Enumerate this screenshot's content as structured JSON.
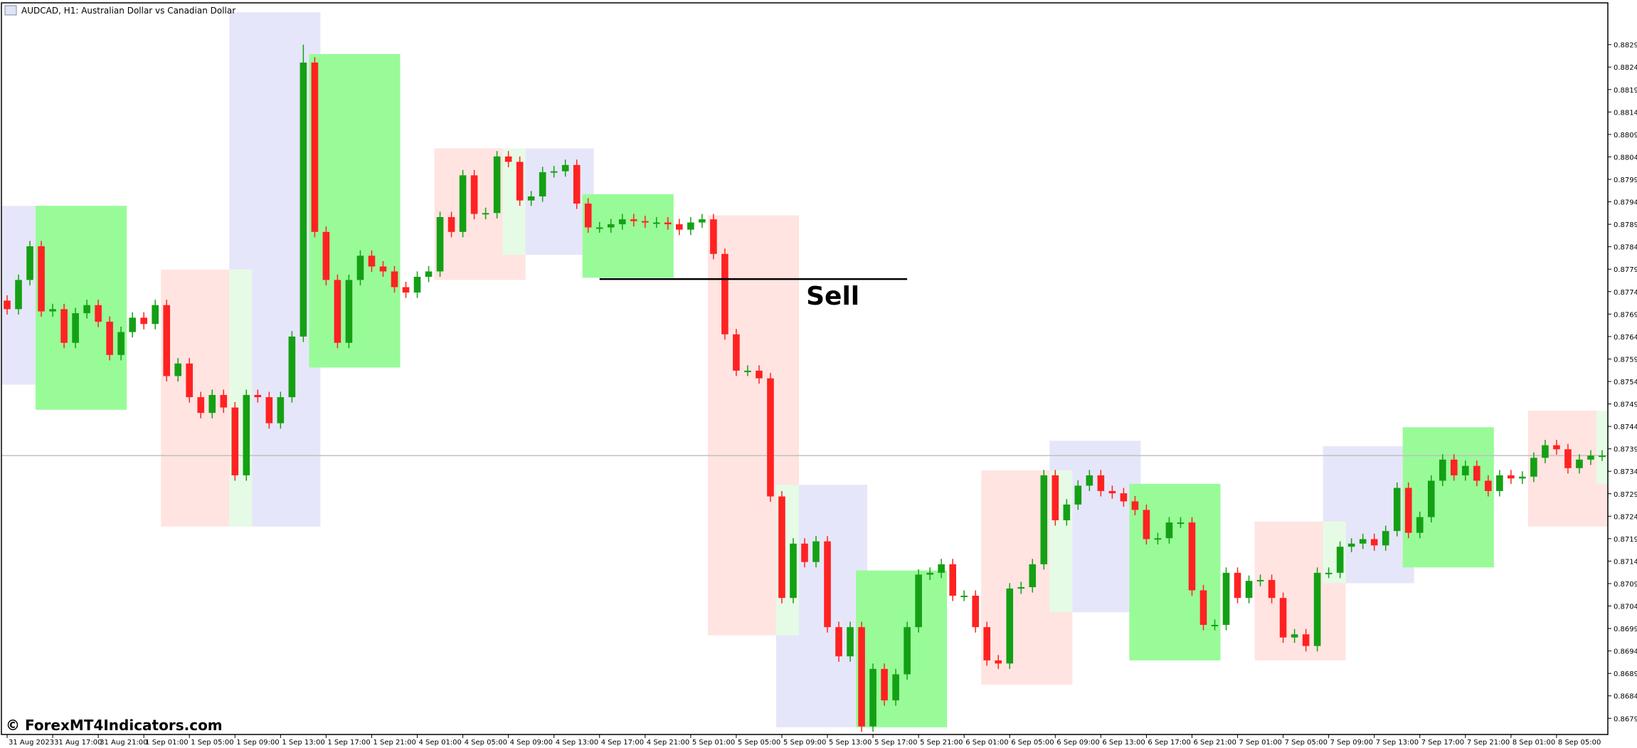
{
  "chart_data": {
    "type": "candlestick",
    "title": "AUDCAD, H1:  Australian Dollar vs Canadian Dollar",
    "watermark": "© ForexMT4Indicators.com",
    "up_color": "#14a014",
    "down_color": "#ff2222",
    "ylim": [
      0.86754,
      0.88383
    ],
    "xlim": [
      -0.5,
      140.5
    ],
    "yticks": [
      {
        "value": 0.8679,
        "label": "0.86790"
      },
      {
        "value": 0.8684,
        "label": "0.86840"
      },
      {
        "value": 0.8689,
        "label": "0.86890"
      },
      {
        "value": 0.8694,
        "label": "0.86940"
      },
      {
        "value": 0.8699,
        "label": "0.86990"
      },
      {
        "value": 0.8704,
        "label": "0.87040"
      },
      {
        "value": 0.8709,
        "label": "0.87090"
      },
      {
        "value": 0.8714,
        "label": "0.87140"
      },
      {
        "value": 0.8719,
        "label": "0.87190"
      },
      {
        "value": 0.8724,
        "label": "0.87240"
      },
      {
        "value": 0.8729,
        "label": "0.87290"
      },
      {
        "value": 0.8734,
        "label": "0.87340"
      },
      {
        "value": 0.8739,
        "label": "0.87390"
      },
      {
        "value": 0.8744,
        "label": "0.87440"
      },
      {
        "value": 0.8749,
        "label": "0.87490"
      },
      {
        "value": 0.8754,
        "label": "0.87540"
      },
      {
        "value": 0.8759,
        "label": "0.87590"
      },
      {
        "value": 0.8764,
        "label": "0.87640"
      },
      {
        "value": 0.8769,
        "label": "0.87690"
      },
      {
        "value": 0.8774,
        "label": "0.87740"
      },
      {
        "value": 0.8779,
        "label": "0.87790"
      },
      {
        "value": 0.8784,
        "label": "0.87840"
      },
      {
        "value": 0.8789,
        "label": "0.87890"
      },
      {
        "value": 0.8794,
        "label": "0.87940"
      },
      {
        "value": 0.8799,
        "label": "0.87990"
      },
      {
        "value": 0.8804,
        "label": "0.88040"
      },
      {
        "value": 0.8809,
        "label": "0.88090"
      },
      {
        "value": 0.8814,
        "label": "0.88140"
      },
      {
        "value": 0.8819,
        "label": "0.88190"
      },
      {
        "value": 0.8824,
        "label": "0.88240"
      },
      {
        "value": 0.8829,
        "label": "0.88290"
      }
    ],
    "xticks": [
      {
        "value": 0,
        "label": "31 Aug 2023"
      },
      {
        "value": 4,
        "label": "31 Aug 17:00"
      },
      {
        "value": 8,
        "label": "31 Aug 21:00"
      },
      {
        "value": 12,
        "label": "1 Sep 01:00"
      },
      {
        "value": 16,
        "label": "1 Sep 05:00"
      },
      {
        "value": 20,
        "label": "1 Sep 09:00"
      },
      {
        "value": 24,
        "label": "1 Sep 13:00"
      },
      {
        "value": 28,
        "label": "1 Sep 17:00"
      },
      {
        "value": 32,
        "label": "1 Sep 21:00"
      },
      {
        "value": 36,
        "label": "4 Sep 01:00"
      },
      {
        "value": 40,
        "label": "4 Sep 05:00"
      },
      {
        "value": 44,
        "label": "4 Sep 09:00"
      },
      {
        "value": 48,
        "label": "4 Sep 13:00"
      },
      {
        "value": 52,
        "label": "4 Sep 17:00"
      },
      {
        "value": 56,
        "label": "4 Sep 21:00"
      },
      {
        "value": 60,
        "label": "5 Sep 01:00"
      },
      {
        "value": 64,
        "label": "5 Sep 05:00"
      },
      {
        "value": 68,
        "label": "5 Sep 09:00"
      },
      {
        "value": 72,
        "label": "5 Sep 13:00"
      },
      {
        "value": 76,
        "label": "5 Sep 17:00"
      },
      {
        "value": 80,
        "label": "5 Sep 21:00"
      },
      {
        "value": 84,
        "label": "6 Sep 01:00"
      },
      {
        "value": 88,
        "label": "6 Sep 05:00"
      },
      {
        "value": 92,
        "label": "6 Sep 09:00"
      },
      {
        "value": 96,
        "label": "6 Sep 13:00"
      },
      {
        "value": 100,
        "label": "6 Sep 17:00"
      },
      {
        "value": 104,
        "label": "6 Sep 21:00"
      },
      {
        "value": 108,
        "label": "7 Sep 01:00"
      },
      {
        "value": 112,
        "label": "7 Sep 05:00"
      },
      {
        "value": 116,
        "label": "7 Sep 09:00"
      },
      {
        "value": 120,
        "label": "7 Sep 13:00"
      },
      {
        "value": 124,
        "label": "7 Sep 17:00"
      },
      {
        "value": 128,
        "label": "7 Sep 21:00"
      },
      {
        "value": 132,
        "label": "8 Sep 01:00"
      },
      {
        "value": 136,
        "label": "8 Sep 05:00"
      }
    ],
    "zones": [
      {
        "x0": 0,
        "x1": 4,
        "top": 0.87931,
        "bottom": 0.87533,
        "color": "#e6e6fa"
      },
      {
        "x0": 3,
        "x1": 11,
        "top": 0.87931,
        "bottom": 0.87477,
        "color": "#98fb98"
      },
      {
        "x0": 14,
        "x1": 20,
        "top": 0.87789,
        "bottom": 0.87217,
        "color": "#ffe4e1"
      },
      {
        "x0": 20,
        "x1": 28,
        "top": 0.88362,
        "bottom": 0.87217,
        "color": "#e6e6fa"
      },
      {
        "x0": 20,
        "x1": 22,
        "top": 0.87789,
        "bottom": 0.87217,
        "color": "#e6fbe6"
      },
      {
        "x0": 27,
        "x1": 35,
        "top": 0.88269,
        "bottom": 0.87571,
        "color": "#98fb98"
      },
      {
        "x0": 38,
        "x1": 46,
        "top": 0.88059,
        "bottom": 0.87766,
        "color": "#ffe4e1"
      },
      {
        "x0": 44,
        "x1": 46,
        "top": 0.88059,
        "bottom": 0.87822,
        "color": "#e6fbe6"
      },
      {
        "x0": 46,
        "x1": 52,
        "top": 0.88059,
        "bottom": 0.87822,
        "color": "#e6e6fa"
      },
      {
        "x0": 51,
        "x1": 59,
        "top": 0.87957,
        "bottom": 0.87771,
        "color": "#98fb98"
      },
      {
        "x0": 62,
        "x1": 70,
        "top": 0.8791,
        "bottom": 0.86975,
        "color": "#ffe4e1"
      },
      {
        "x0": 68,
        "x1": 76,
        "top": 0.8731,
        "bottom": 0.8677,
        "color": "#e6e6fa"
      },
      {
        "x0": 68,
        "x1": 70,
        "top": 0.8731,
        "bottom": 0.86975,
        "color": "#e6fbe6"
      },
      {
        "x0": 75,
        "x1": 83,
        "top": 0.87119,
        "bottom": 0.8677,
        "color": "#98fb98"
      },
      {
        "x0": 86,
        "x1": 94,
        "top": 0.87342,
        "bottom": 0.86865,
        "color": "#ffe4e1"
      },
      {
        "x0": 92,
        "x1": 100,
        "top": 0.87408,
        "bottom": 0.87026,
        "color": "#e6e6fa"
      },
      {
        "x0": 92,
        "x1": 94,
        "top": 0.87342,
        "bottom": 0.87026,
        "color": "#e6fbe6"
      },
      {
        "x0": 99,
        "x1": 107,
        "top": 0.87312,
        "bottom": 0.86919,
        "color": "#98fb98"
      },
      {
        "x0": 110,
        "x1": 118,
        "top": 0.87228,
        "bottom": 0.86919,
        "color": "#ffe4e1"
      },
      {
        "x0": 116,
        "x1": 124,
        "top": 0.87396,
        "bottom": 0.87091,
        "color": "#e6e6fa"
      },
      {
        "x0": 116,
        "x1": 118,
        "top": 0.87228,
        "bottom": 0.87091,
        "color": "#e6fbe6"
      },
      {
        "x0": 123,
        "x1": 131,
        "top": 0.87438,
        "bottom": 0.87126,
        "color": "#98fb98"
      },
      {
        "x0": 134,
        "x1": 141,
        "top": 0.87475,
        "bottom": 0.87217,
        "color": "#ffe4e1"
      },
      {
        "x0": 140,
        "x1": 141,
        "top": 0.87475,
        "bottom": 0.87312,
        "color": "#e6fbe6"
      }
    ],
    "annotation": {
      "text": "Sell",
      "price": 0.87768,
      "x0": 52,
      "x1": 79
    },
    "candles": [
      [
        0.8772,
        0.87732,
        0.87689,
        0.87701
      ],
      [
        0.87701,
        0.87778,
        0.87689,
        0.87766
      ],
      [
        0.87766,
        0.87853,
        0.87754,
        0.87841
      ],
      [
        0.87841,
        0.87853,
        0.87684,
        0.87696
      ],
      [
        0.87696,
        0.87713,
        0.87684,
        0.87701
      ],
      [
        0.87701,
        0.87713,
        0.87614,
        0.87626
      ],
      [
        0.87626,
        0.87704,
        0.87614,
        0.87692
      ],
      [
        0.87692,
        0.87722,
        0.8768,
        0.8771
      ],
      [
        0.8771,
        0.87722,
        0.87661,
        0.87673
      ],
      [
        0.87673,
        0.87685,
        0.87587,
        0.87599
      ],
      [
        0.87599,
        0.87662,
        0.87587,
        0.8765
      ],
      [
        0.8765,
        0.87694,
        0.87638,
        0.87682
      ],
      [
        0.87682,
        0.87694,
        0.87656,
        0.87668
      ],
      [
        0.87668,
        0.87722,
        0.87656,
        0.8771
      ],
      [
        0.8771,
        0.87722,
        0.8754,
        0.87552
      ],
      [
        0.87552,
        0.87592,
        0.8754,
        0.8758
      ],
      [
        0.8758,
        0.87592,
        0.87493,
        0.87505
      ],
      [
        0.87505,
        0.87517,
        0.87458,
        0.8747
      ],
      [
        0.8747,
        0.87522,
        0.87458,
        0.8751
      ],
      [
        0.8751,
        0.87522,
        0.8747,
        0.87482
      ],
      [
        0.87482,
        0.87494,
        0.87319,
        0.87331
      ],
      [
        0.87331,
        0.87522,
        0.87319,
        0.8751
      ],
      [
        0.8751,
        0.87522,
        0.87493,
        0.87505
      ],
      [
        0.87505,
        0.87517,
        0.87435,
        0.87447
      ],
      [
        0.87447,
        0.87517,
        0.87435,
        0.87505
      ],
      [
        0.87505,
        0.87652,
        0.87493,
        0.8764
      ],
      [
        0.8764,
        0.8829,
        0.87628,
        0.8825
      ],
      [
        0.8825,
        0.88262,
        0.87861,
        0.87873
      ],
      [
        0.87873,
        0.87885,
        0.87754,
        0.87766
      ],
      [
        0.87766,
        0.87778,
        0.87614,
        0.87626
      ],
      [
        0.87626,
        0.87778,
        0.87614,
        0.87766
      ],
      [
        0.87766,
        0.87832,
        0.87754,
        0.8782
      ],
      [
        0.8782,
        0.87832,
        0.87784,
        0.87796
      ],
      [
        0.87796,
        0.87808,
        0.87773,
        0.87785
      ],
      [
        0.87785,
        0.87797,
        0.87738,
        0.8775
      ],
      [
        0.8775,
        0.87762,
        0.87726,
        0.87738
      ],
      [
        0.87738,
        0.87785,
        0.87726,
        0.87773
      ],
      [
        0.87773,
        0.87797,
        0.87761,
        0.87785
      ],
      [
        0.87785,
        0.87918,
        0.87773,
        0.87906
      ],
      [
        0.87906,
        0.87918,
        0.87861,
        0.87873
      ],
      [
        0.87873,
        0.88011,
        0.87861,
        0.87999
      ],
      [
        0.87999,
        0.88011,
        0.87901,
        0.87913
      ],
      [
        0.87913,
        0.87927,
        0.87901,
        0.87915
      ],
      [
        0.87915,
        0.88053,
        0.87903,
        0.88041
      ],
      [
        0.88041,
        0.88053,
        0.88017,
        0.88029
      ],
      [
        0.88029,
        0.88041,
        0.87931,
        0.87943
      ],
      [
        0.87943,
        0.87964,
        0.87931,
        0.87952
      ],
      [
        0.87952,
        0.88018,
        0.8794,
        0.88006
      ],
      [
        0.88006,
        0.8802,
        0.87994,
        0.88008
      ],
      [
        0.88008,
        0.88034,
        0.87996,
        0.88022
      ],
      [
        0.88022,
        0.88034,
        0.87924,
        0.87936
      ],
      [
        0.87936,
        0.87948,
        0.87871,
        0.87883
      ],
      [
        0.87883,
        0.87895,
        0.87871,
        0.87883
      ],
      [
        0.87883,
        0.87902,
        0.87871,
        0.8789
      ],
      [
        0.8789,
        0.87913,
        0.87878,
        0.87901
      ],
      [
        0.87901,
        0.87913,
        0.87885,
        0.87897
      ],
      [
        0.87897,
        0.87909,
        0.87882,
        0.87894
      ],
      [
        0.87894,
        0.87906,
        0.87882,
        0.87894
      ],
      [
        0.87894,
        0.87906,
        0.87878,
        0.8789
      ],
      [
        0.8789,
        0.87902,
        0.87866,
        0.87878
      ],
      [
        0.87878,
        0.87906,
        0.87866,
        0.87894
      ],
      [
        0.87894,
        0.87913,
        0.87882,
        0.87901
      ],
      [
        0.87901,
        0.87913,
        0.87812,
        0.87824
      ],
      [
        0.87824,
        0.87836,
        0.87633,
        0.87645
      ],
      [
        0.87645,
        0.87657,
        0.87552,
        0.87564
      ],
      [
        0.87564,
        0.87576,
        0.87552,
        0.87564
      ],
      [
        0.87564,
        0.87576,
        0.87535,
        0.87547
      ],
      [
        0.87547,
        0.87559,
        0.87272,
        0.87284
      ],
      [
        0.87284,
        0.87296,
        0.87046,
        0.87058
      ],
      [
        0.87058,
        0.87191,
        0.87046,
        0.87179
      ],
      [
        0.87179,
        0.87191,
        0.87126,
        0.87138
      ],
      [
        0.87138,
        0.87196,
        0.87126,
        0.87184
      ],
      [
        0.87184,
        0.87196,
        0.86981,
        0.86993
      ],
      [
        0.86993,
        0.87005,
        0.86916,
        0.86928
      ],
      [
        0.86928,
        0.87005,
        0.86916,
        0.86993
      ],
      [
        0.86993,
        0.87005,
        0.8676,
        0.86772
      ],
      [
        0.86772,
        0.86912,
        0.8676,
        0.869
      ],
      [
        0.869,
        0.86912,
        0.86818,
        0.8683
      ],
      [
        0.8683,
        0.869,
        0.86818,
        0.86888
      ],
      [
        0.86888,
        0.87005,
        0.86876,
        0.86993
      ],
      [
        0.86993,
        0.87122,
        0.86981,
        0.8711
      ],
      [
        0.8711,
        0.87126,
        0.87098,
        0.87114
      ],
      [
        0.87114,
        0.87145,
        0.87102,
        0.87133
      ],
      [
        0.87133,
        0.87145,
        0.87051,
        0.87063
      ],
      [
        0.87063,
        0.87075,
        0.87051,
        0.87063
      ],
      [
        0.87063,
        0.87075,
        0.86981,
        0.86993
      ],
      [
        0.86993,
        0.87005,
        0.86907,
        0.86919
      ],
      [
        0.86919,
        0.86931,
        0.869,
        0.86912
      ],
      [
        0.86912,
        0.87091,
        0.869,
        0.87079
      ],
      [
        0.87079,
        0.87094,
        0.87067,
        0.87082
      ],
      [
        0.87082,
        0.87145,
        0.8707,
        0.87133
      ],
      [
        0.87133,
        0.87343,
        0.87121,
        0.87331
      ],
      [
        0.87331,
        0.87343,
        0.87219,
        0.87231
      ],
      [
        0.87231,
        0.87278,
        0.87219,
        0.87266
      ],
      [
        0.87266,
        0.8732,
        0.87254,
        0.87308
      ],
      [
        0.87308,
        0.87343,
        0.87296,
        0.87331
      ],
      [
        0.87331,
        0.87343,
        0.87284,
        0.87296
      ],
      [
        0.87296,
        0.87308,
        0.87279,
        0.87291
      ],
      [
        0.87291,
        0.87303,
        0.87261,
        0.87273
      ],
      [
        0.87273,
        0.87285,
        0.87242,
        0.87254
      ],
      [
        0.87254,
        0.87266,
        0.87177,
        0.87189
      ],
      [
        0.87189,
        0.87203,
        0.87177,
        0.87191
      ],
      [
        0.87191,
        0.87238,
        0.87179,
        0.87226
      ],
      [
        0.87226,
        0.87238,
        0.87214,
        0.87226
      ],
      [
        0.87226,
        0.87238,
        0.87063,
        0.87075
      ],
      [
        0.87075,
        0.87087,
        0.86986,
        0.86998
      ],
      [
        0.86998,
        0.8701,
        0.86986,
        0.86998
      ],
      [
        0.86998,
        0.87126,
        0.86986,
        0.87114
      ],
      [
        0.87114,
        0.87126,
        0.87046,
        0.87058
      ],
      [
        0.87058,
        0.87108,
        0.87046,
        0.87096
      ],
      [
        0.87096,
        0.8711,
        0.87084,
        0.87098
      ],
      [
        0.87098,
        0.8711,
        0.87046,
        0.87058
      ],
      [
        0.87058,
        0.8707,
        0.86958,
        0.8697
      ],
      [
        0.8697,
        0.86989,
        0.86958,
        0.86977
      ],
      [
        0.86977,
        0.86989,
        0.86939,
        0.86951
      ],
      [
        0.86951,
        0.87126,
        0.86939,
        0.87114
      ],
      [
        0.87114,
        0.87126,
        0.87102,
        0.87114
      ],
      [
        0.87114,
        0.87184,
        0.87102,
        0.87172
      ],
      [
        0.87172,
        0.87191,
        0.8716,
        0.87179
      ],
      [
        0.87179,
        0.87201,
        0.87167,
        0.87189
      ],
      [
        0.87189,
        0.87201,
        0.87163,
        0.87175
      ],
      [
        0.87175,
        0.87219,
        0.87163,
        0.87207
      ],
      [
        0.87207,
        0.87315,
        0.87195,
        0.87303
      ],
      [
        0.87303,
        0.87315,
        0.87191,
        0.87203
      ],
      [
        0.87203,
        0.8725,
        0.87191,
        0.87238
      ],
      [
        0.87238,
        0.87331,
        0.87226,
        0.87319
      ],
      [
        0.87319,
        0.87378,
        0.87307,
        0.87366
      ],
      [
        0.87366,
        0.87378,
        0.87319,
        0.87331
      ],
      [
        0.87331,
        0.87364,
        0.87319,
        0.87352
      ],
      [
        0.87352,
        0.87364,
        0.87307,
        0.87319
      ],
      [
        0.87319,
        0.87331,
        0.87284,
        0.87296
      ],
      [
        0.87296,
        0.87343,
        0.87284,
        0.87331
      ],
      [
        0.87331,
        0.87343,
        0.87312,
        0.87324
      ],
      [
        0.87324,
        0.8734,
        0.87312,
        0.87328
      ],
      [
        0.87328,
        0.87382,
        0.87316,
        0.8737
      ],
      [
        0.8737,
        0.8741,
        0.87358,
        0.87398
      ],
      [
        0.87398,
        0.8741,
        0.87377,
        0.87389
      ],
      [
        0.87389,
        0.87401,
        0.87335,
        0.87347
      ],
      [
        0.87347,
        0.87378,
        0.87335,
        0.87366
      ],
      [
        0.87366,
        0.87387,
        0.87354,
        0.87375
      ],
      [
        0.87375,
        0.87387,
        0.87363,
        0.87375
      ]
    ]
  }
}
